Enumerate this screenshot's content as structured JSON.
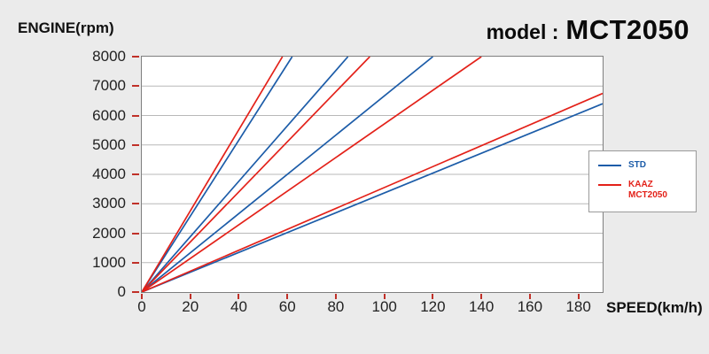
{
  "page": {
    "background": "#ebebeb"
  },
  "header": {
    "engine_axis_label": "ENGINE(rpm)",
    "speed_axis_label": "SPEED(km/h)",
    "model_prefix": "model :",
    "model_name": "MCT2050"
  },
  "legend": {
    "items": [
      {
        "label": "STD",
        "color": "#1c5ca8"
      },
      {
        "label_line1": "KAAZ",
        "label_line2": "MCT2050",
        "color": "#e32119"
      }
    ]
  },
  "chart_data": {
    "type": "line",
    "title": "model : MCT2050",
    "xlabel": "SPEED(km/h)",
    "ylabel": "ENGINE(rpm)",
    "xlim": [
      0,
      190
    ],
    "ylim": [
      0,
      8000
    ],
    "x_ticks": [
      0,
      20,
      40,
      60,
      80,
      100,
      120,
      140,
      160,
      180
    ],
    "y_ticks": [
      0,
      1000,
      2000,
      3000,
      4000,
      5000,
      6000,
      7000,
      8000
    ],
    "grid": "horizontal",
    "grid_color": "#b8b8b8",
    "tick_color": "#c03028",
    "legend_position": "right",
    "series": [
      {
        "name": "STD",
        "color": "#1c5ca8",
        "lines": [
          {
            "x": [
              0,
              62
            ],
            "y": [
              0,
              8000
            ]
          },
          {
            "x": [
              0,
              85
            ],
            "y": [
              0,
              8000
            ]
          },
          {
            "x": [
              0,
              120
            ],
            "y": [
              0,
              8000
            ]
          },
          {
            "x": [
              0,
              190
            ],
            "y": [
              0,
              6400
            ]
          }
        ]
      },
      {
        "name": "KAAZ MCT2050",
        "color": "#e32119",
        "lines": [
          {
            "x": [
              0,
              58
            ],
            "y": [
              0,
              8000
            ]
          },
          {
            "x": [
              0,
              94
            ],
            "y": [
              0,
              8000
            ]
          },
          {
            "x": [
              0,
              140
            ],
            "y": [
              0,
              8000
            ]
          },
          {
            "x": [
              0,
              190
            ],
            "y": [
              0,
              6750
            ]
          }
        ]
      }
    ]
  }
}
